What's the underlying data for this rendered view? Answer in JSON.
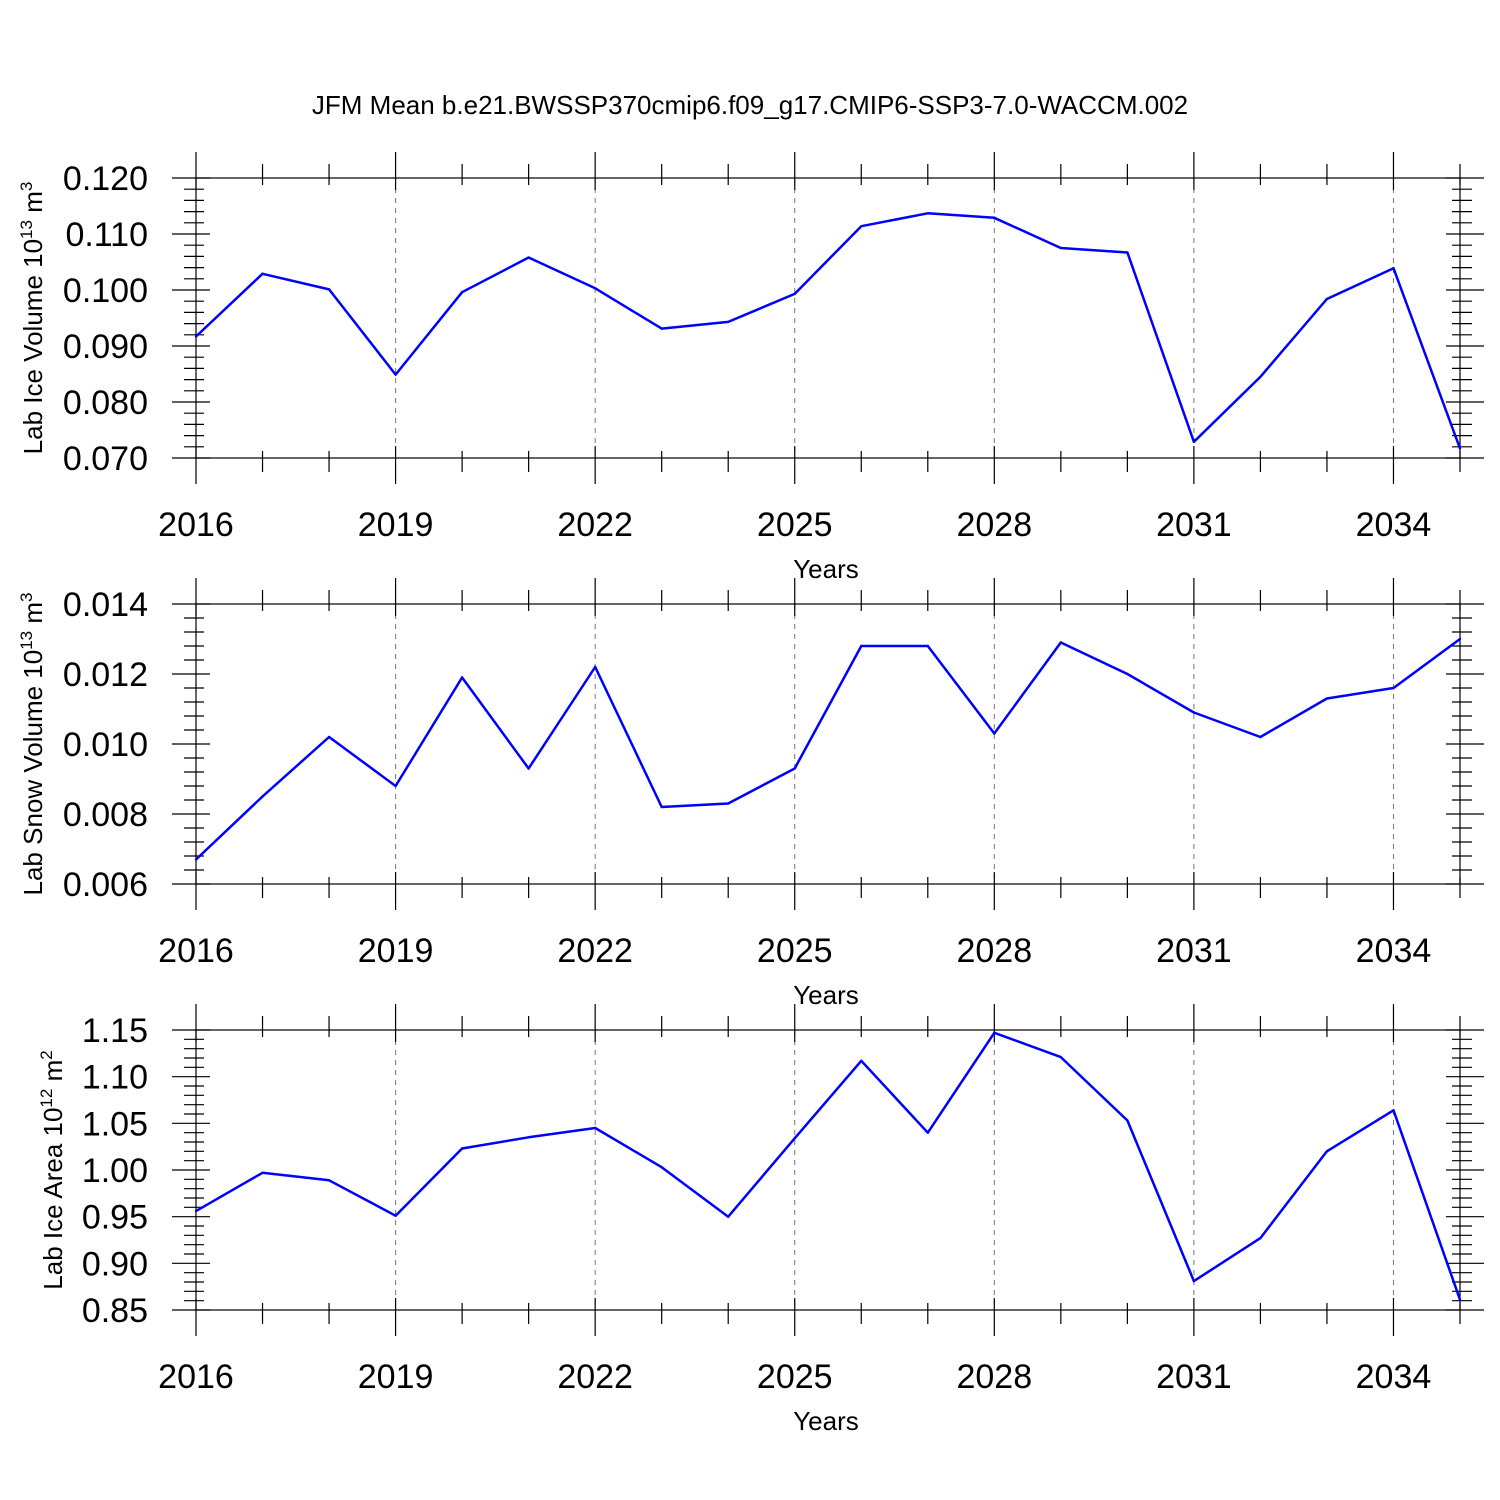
{
  "chart_data": [
    {
      "type": "line",
      "title": "JFM Mean b.e21.BWSSP370cmip6.f09_g17.CMIP6-SSP3-7.0-WACCM.002",
      "xlabel": "Years",
      "ylabel": {
        "text": "Lab Ice Volume 10",
        "exp": "13",
        "unit": " m",
        "unit_exp": "3"
      },
      "xlim": [
        2016,
        2035
      ],
      "ylim": [
        0.07,
        0.12
      ],
      "x_ticks": [
        2016,
        2019,
        2022,
        2025,
        2028,
        2031,
        2034
      ],
      "y_ticks": [
        "0.070",
        "0.080",
        "0.090",
        "0.100",
        "0.110",
        "0.120"
      ],
      "grid": "vertical dashed at major x ticks",
      "color": "#0000ff",
      "x": [
        2016,
        2017,
        2018,
        2019,
        2020,
        2021,
        2022,
        2023,
        2024,
        2025,
        2026,
        2027,
        2028,
        2029,
        2030,
        2031,
        2032,
        2033,
        2034,
        2035
      ],
      "values": [
        0.0917,
        0.1029,
        0.1001,
        0.0849,
        0.0996,
        0.1058,
        0.1003,
        0.0931,
        0.0943,
        0.0993,
        0.1114,
        0.1137,
        0.1129,
        0.1075,
        0.1067,
        0.0729,
        0.0845,
        0.0984,
        0.1039,
        0.0717
      ]
    },
    {
      "type": "line",
      "title": "",
      "xlabel": "Years",
      "ylabel": {
        "text": "Lab Snow Volume 10",
        "exp": "13",
        "unit": " m",
        "unit_exp": "3"
      },
      "xlim": [
        2016,
        2035
      ],
      "ylim": [
        0.006,
        0.014
      ],
      "x_ticks": [
        2016,
        2019,
        2022,
        2025,
        2028,
        2031,
        2034
      ],
      "y_ticks": [
        "0.006",
        "0.008",
        "0.010",
        "0.012",
        "0.014"
      ],
      "grid": "vertical dashed at major x ticks",
      "color": "#0000ff",
      "x": [
        2016,
        2017,
        2018,
        2019,
        2020,
        2021,
        2022,
        2023,
        2024,
        2025,
        2026,
        2027,
        2028,
        2029,
        2030,
        2031,
        2032,
        2033,
        2034,
        2035
      ],
      "values": [
        0.0067,
        0.0085,
        0.0102,
        0.0088,
        0.0119,
        0.0093,
        0.0122,
        0.0082,
        0.0083,
        0.0093,
        0.0128,
        0.0128,
        0.0103,
        0.0129,
        0.012,
        0.0109,
        0.0102,
        0.0113,
        0.0116,
        0.013
      ]
    },
    {
      "type": "line",
      "title": "",
      "xlabel": "Years",
      "ylabel": {
        "text": "Lab Ice Area 10",
        "exp": "12",
        "unit": " m",
        "unit_exp": "2"
      },
      "xlim": [
        2016,
        2035
      ],
      "ylim": [
        0.85,
        1.15
      ],
      "x_ticks": [
        2016,
        2019,
        2022,
        2025,
        2028,
        2031,
        2034
      ],
      "y_ticks": [
        "0.85",
        "0.90",
        "0.95",
        "1.00",
        "1.05",
        "1.10",
        "1.15"
      ],
      "grid": "vertical dashed at major x ticks",
      "color": "#0000ff",
      "x": [
        2016,
        2017,
        2018,
        2019,
        2020,
        2021,
        2022,
        2023,
        2024,
        2025,
        2026,
        2027,
        2028,
        2029,
        2030,
        2031,
        2032,
        2033,
        2034,
        2035
      ],
      "values": [
        0.956,
        0.997,
        0.989,
        0.951,
        1.023,
        1.035,
        1.045,
        1.003,
        0.95,
        1.034,
        1.117,
        1.04,
        1.147,
        1.121,
        1.053,
        0.881,
        0.927,
        1.02,
        1.064,
        0.861
      ]
    }
  ]
}
